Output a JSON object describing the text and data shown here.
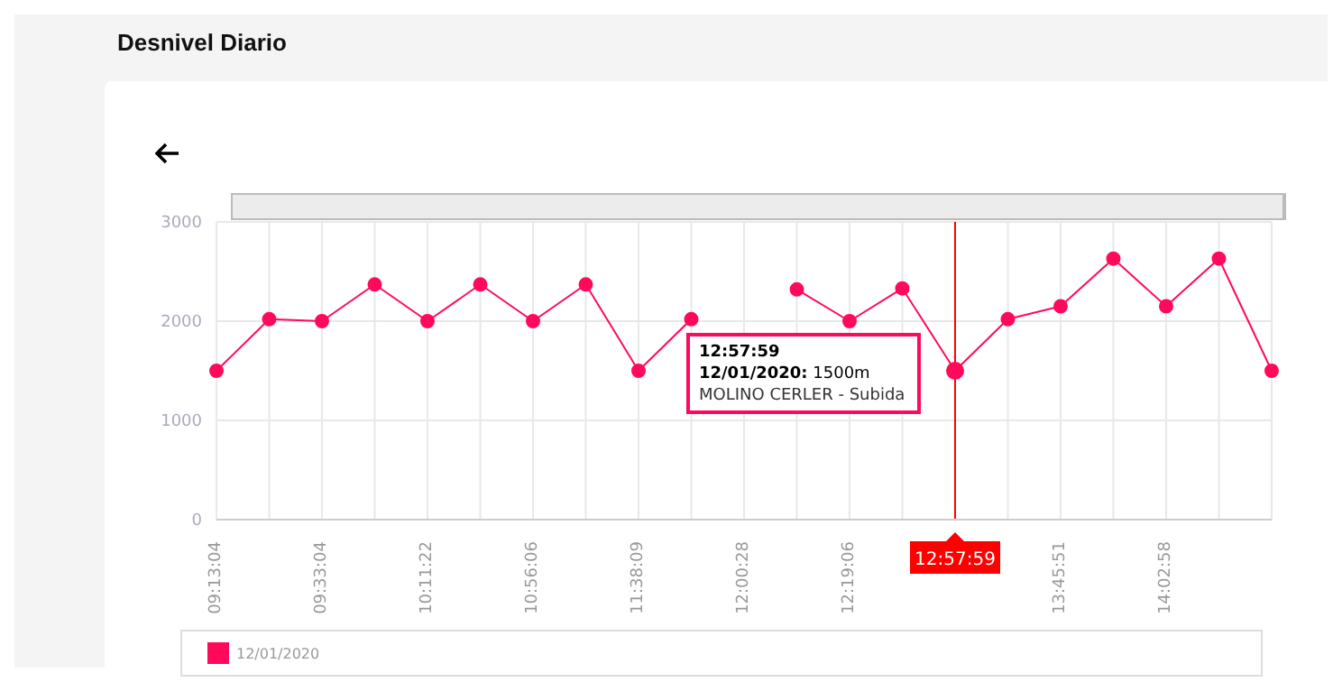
{
  "chart_data": {
    "type": "line",
    "title": "Desnivel Diario",
    "categories": [
      "09:13:04",
      null,
      "09:33:04",
      null,
      "10:11:22",
      null,
      "10:56:06",
      null,
      "11:38:09",
      null,
      "12:00:28",
      null,
      "12:19:06",
      null,
      "12:57:59",
      null,
      "13:45:51",
      null,
      "14:02:58",
      null,
      null
    ],
    "series": [
      {
        "name": "12/01/2020",
        "color": "#ff0a5a",
        "values": [
          1500,
          2020,
          2000,
          2370,
          2000,
          2370,
          2000,
          2370,
          1500,
          2020,
          null,
          2320,
          2000,
          2330,
          1500,
          2020,
          2150,
          2630,
          2150,
          2630,
          1500
        ]
      }
    ],
    "ylim": [
      0,
      3000
    ],
    "yticks": [
      0,
      1000,
      2000,
      3000
    ],
    "grid": true,
    "legend": "bottom",
    "marker": "circle",
    "line_style": "solid",
    "ref_lines": [
      {
        "axis": "x",
        "value": "12:57:59",
        "color": "#ff0000"
      }
    ],
    "annotations": [
      "12/01/2020: 1500m",
      "MOLINO CERLER - Subida"
    ]
  }
}
